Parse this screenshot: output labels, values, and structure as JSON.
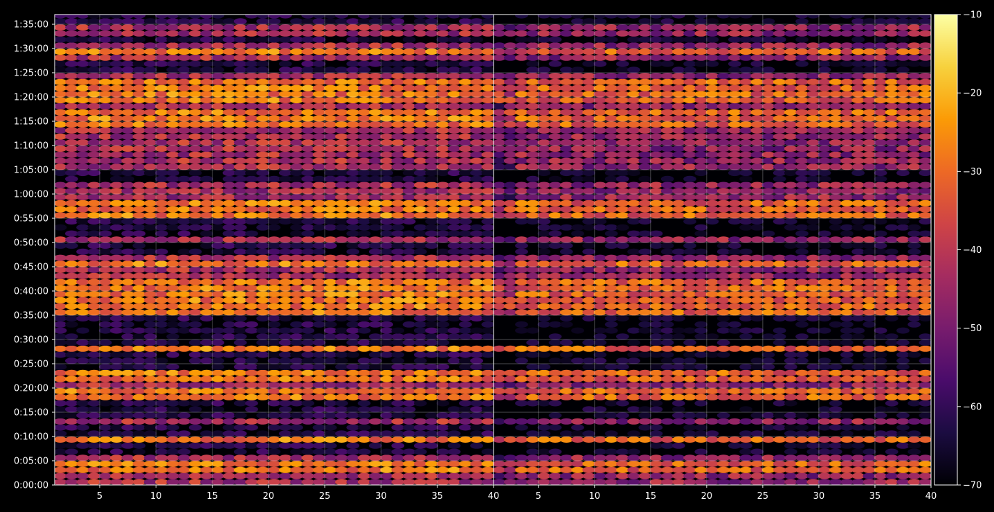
{
  "chart_data": [
    {
      "type": "heatmap",
      "panel": "left",
      "x_ticks": [
        "5",
        "10",
        "15",
        "20",
        "25",
        "30",
        "35",
        "40"
      ],
      "x_tick_values": [
        5,
        10,
        15,
        20,
        25,
        30,
        35,
        40
      ],
      "xlim": [
        1,
        40
      ],
      "y_ticks": [
        "0:00:00",
        "0:05:00",
        "0:10:00",
        "0:15:00",
        "0:20:00",
        "0:25:00",
        "0:30:00",
        "0:35:00",
        "0:40:00",
        "0:45:00",
        "0:50:00",
        "0:55:00",
        "1:00:00",
        "1:05:00",
        "1:10:00",
        "1:15:00",
        "1:20:00",
        "1:25:00",
        "1:30:00",
        "1:35:00"
      ],
      "y_tick_values_min": [
        0,
        5,
        10,
        15,
        20,
        25,
        30,
        35,
        40,
        45,
        50,
        55,
        60,
        65,
        70,
        75,
        80,
        85,
        90,
        95
      ],
      "ylim_min": [
        0,
        97
      ],
      "grid": true,
      "active_bands_min": [
        [
          0.5,
          6.5
        ],
        [
          8.5,
          10.5
        ],
        [
          12,
          14
        ],
        [
          17.5,
          19.5
        ],
        [
          20.5,
          24
        ],
        [
          27.5,
          29
        ],
        [
          35,
          47
        ],
        [
          49.5,
          51
        ],
        [
          54.5,
          62.5
        ],
        [
          64.5,
          76.5
        ],
        [
          77.5,
          85
        ],
        [
          87.5,
          91.5
        ],
        [
          93,
          94.5
        ]
      ],
      "hot_bands_min": [
        [
          2.5,
          5.5
        ],
        [
          9,
          10
        ],
        [
          18,
          19.5
        ],
        [
          21.5,
          23.5
        ],
        [
          28,
          28.7
        ],
        [
          35.5,
          43
        ],
        [
          45.5,
          46.5
        ],
        [
          55,
          59
        ],
        [
          74,
          77
        ],
        [
          78.5,
          84
        ],
        [
          89,
          90
        ]
      ],
      "colorbar": {
        "min": -70,
        "max": -10,
        "colormap": "inferno"
      }
    },
    {
      "type": "heatmap",
      "panel": "right",
      "x_ticks": [
        "5",
        "10",
        "15",
        "20",
        "25",
        "30",
        "35",
        "40"
      ],
      "x_tick_values": [
        5,
        10,
        15,
        20,
        25,
        30,
        35,
        40
      ],
      "xlim": [
        1,
        40
      ],
      "ylim_min": [
        0,
        97
      ],
      "grid": true,
      "active_bands_min": [
        [
          0.5,
          6.5
        ],
        [
          8.5,
          10.5
        ],
        [
          12,
          14
        ],
        [
          17.5,
          19.5
        ],
        [
          20.5,
          24
        ],
        [
          27.5,
          29
        ],
        [
          35,
          47
        ],
        [
          49.5,
          51
        ],
        [
          54.5,
          62.5
        ],
        [
          64.5,
          76.5
        ],
        [
          77.5,
          85
        ],
        [
          87.5,
          91.5
        ],
        [
          93,
          94.5
        ]
      ],
      "hot_bands_min": [
        [
          2.5,
          5.5
        ],
        [
          9,
          10
        ],
        [
          18,
          19.5
        ],
        [
          21.5,
          23.5
        ],
        [
          28,
          28.7
        ],
        [
          35.5,
          43
        ],
        [
          45.5,
          46.5
        ],
        [
          55,
          59
        ],
        [
          74,
          77
        ],
        [
          78.5,
          84
        ],
        [
          89,
          90
        ]
      ],
      "colorbar": {
        "min": -70,
        "max": -10,
        "colormap": "inferno"
      }
    }
  ],
  "colorbar": {
    "ticks": [
      "−10",
      "−20",
      "−30",
      "−40",
      "−50",
      "−60",
      "−70"
    ],
    "tick_values": [
      -10,
      -20,
      -30,
      -40,
      -50,
      -60,
      -70
    ],
    "range": [
      -70,
      -10
    ],
    "colormap": "inferno",
    "stops": [
      "#000004",
      "#1b0c41",
      "#4a0c6b",
      "#781c6d",
      "#a52c60",
      "#cf4446",
      "#ed6925",
      "#fb9b06",
      "#f7d13d",
      "#fcffa4"
    ]
  },
  "colors": {
    "background": "#000000",
    "text": "#ffffff",
    "grid": "#ffffff"
  }
}
